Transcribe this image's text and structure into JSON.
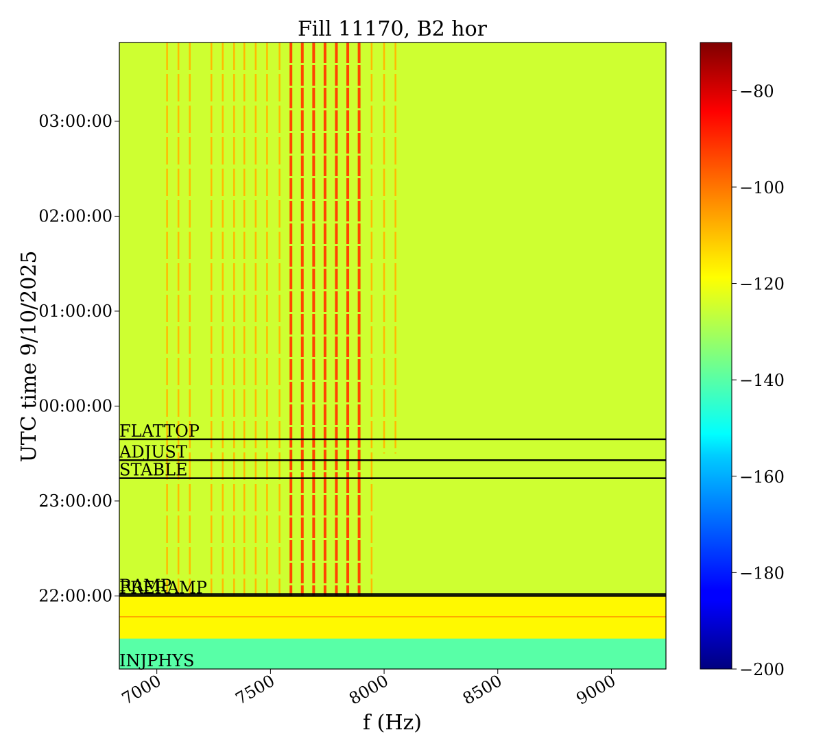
{
  "chart_data": {
    "type": "heatmap",
    "title": "Fill 11170, B2 hor",
    "xlabel": "f (Hz)",
    "ylabel": "UTC time 9/10/2025",
    "xlim": [
      6835,
      9240
    ],
    "ylim_hours_since_midnight_9_10": [
      -2.77,
      3.83
    ],
    "x_ticks": [
      7000,
      7500,
      8000,
      8500,
      9000
    ],
    "y_ticks": [
      {
        "label": "22:00:00",
        "value": -2.0
      },
      {
        "label": "23:00:00",
        "value": -1.0
      },
      {
        "label": "00:00:00",
        "value": 0.0
      },
      {
        "label": "01:00:00",
        "value": 1.0
      },
      {
        "label": "02:00:00",
        "value": 2.0
      },
      {
        "label": "03:00:00",
        "value": 3.0
      }
    ],
    "colorbar": {
      "colormap": "jet",
      "range": [
        -200,
        -70
      ],
      "ticks": [
        -80,
        -100,
        -120,
        -140,
        -160,
        -180,
        -200
      ]
    },
    "beam_modes": [
      {
        "label": "STABLE",
        "time": -0.76
      },
      {
        "label": "ADJUST",
        "time": -0.57
      },
      {
        "label": "FLATTOP",
        "time": -0.35
      },
      {
        "label": "RAMP",
        "time": -1.98
      },
      {
        "label": "PRERAMP",
        "time": -2.0
      },
      {
        "label": "INJPHYS",
        "time": -2.77
      }
    ],
    "background_levels_db": {
      "after_ramp": -125,
      "injection": -140
    },
    "spectral_lines_hz": [
      7045,
      7095,
      7145,
      7240,
      7290,
      7340,
      7385,
      7435,
      7485,
      7540,
      7590,
      7640,
      7690,
      7740,
      7790,
      7840,
      7890,
      7945,
      8000,
      8050
    ],
    "colors": {
      "background": "#ffffff",
      "mode_line": "#000000"
    }
  }
}
